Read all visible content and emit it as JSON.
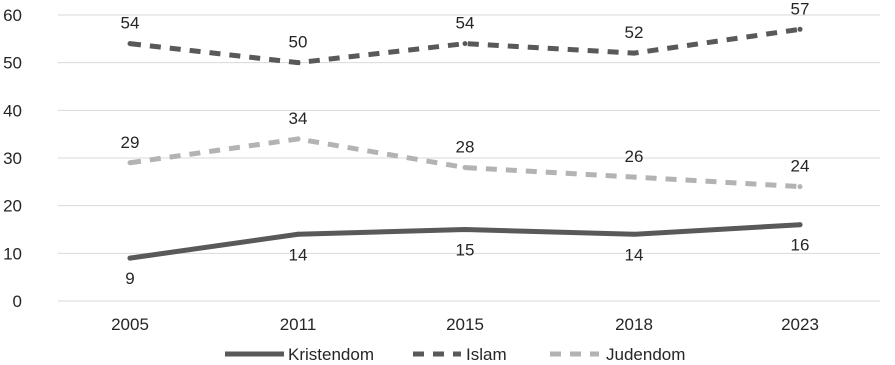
{
  "chart_data": {
    "type": "line",
    "title": "",
    "xlabel": "",
    "ylabel": "",
    "ylim": [
      0,
      60
    ],
    "yticks": [
      0,
      10,
      20,
      30,
      40,
      50,
      60
    ],
    "categories": [
      "2005",
      "2011",
      "2015",
      "2018",
      "2023"
    ],
    "grid": true,
    "legend_position": "bottom",
    "series": [
      {
        "name": "Kristendom",
        "values": [
          9,
          14,
          15,
          14,
          16
        ],
        "color": "#595959",
        "style": "solid",
        "labels": [
          "9",
          "14",
          "15",
          "14",
          "16"
        ],
        "label_side": "below"
      },
      {
        "name": "Islam",
        "values": [
          54,
          50,
          54,
          52,
          57
        ],
        "color": "#595959",
        "style": "dashed",
        "labels": [
          "54",
          "50",
          "54",
          "52",
          "57"
        ],
        "label_side": "above"
      },
      {
        "name": "Judendom",
        "values": [
          29,
          34,
          28,
          26,
          24
        ],
        "color": "#b3b3b3",
        "style": "dashed",
        "labels": [
          "29",
          "34",
          "28",
          "26",
          "24"
        ],
        "label_side": "above"
      }
    ]
  }
}
